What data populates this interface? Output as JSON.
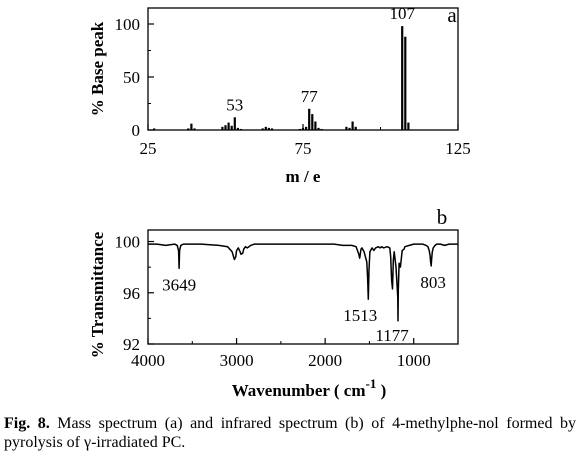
{
  "chart_data": [
    {
      "type": "bar",
      "panel_label": "a",
      "xlabel": "m / e",
      "ylabel": "% Base peak",
      "xlim": [
        25,
        125
      ],
      "ylim": [
        0,
        100
      ],
      "xticks": [
        "25",
        "75",
        "125"
      ],
      "yticks": [
        "0",
        "50",
        "100"
      ],
      "x": [
        27,
        38,
        39,
        40,
        49,
        50,
        51,
        52,
        53,
        54,
        55,
        62,
        63,
        64,
        65,
        74,
        75,
        76,
        77,
        78,
        79,
        80,
        81,
        89,
        90,
        91,
        92,
        106,
        107,
        108,
        109
      ],
      "values": [
        1.5,
        1.5,
        6,
        1.5,
        3,
        4.5,
        7,
        4,
        12,
        2,
        1,
        1.5,
        3,
        2,
        1.5,
        1,
        2,
        3,
        20,
        15,
        8,
        2,
        1,
        3,
        2,
        8,
        3,
        0.5,
        98,
        88,
        7
      ],
      "annotations": [
        {
          "x": 53,
          "text": "53"
        },
        {
          "x": 77,
          "text": "77"
        },
        {
          "x": 107,
          "text": "107"
        }
      ]
    },
    {
      "type": "line",
      "panel_label": "b",
      "xlabel_main": "Wavenumber ( cm",
      "xlabel_sup": "-1",
      "xlabel_end": " )",
      "ylabel": "% Transmittance",
      "xlim": [
        4000,
        500
      ],
      "ylim": [
        92,
        100.9
      ],
      "xticks": [
        "4000",
        "3000",
        "2000",
        "1000"
      ],
      "yticks": [
        "92",
        "96",
        "100"
      ],
      "x": [
        4000,
        3900,
        3800,
        3700,
        3670,
        3655,
        3649,
        3643,
        3630,
        3600,
        3400,
        3200,
        3100,
        3050,
        3025,
        3010,
        3000,
        2980,
        2960,
        2950,
        2930,
        2920,
        2900,
        2880,
        2860,
        2840,
        2800,
        2700,
        2600,
        2400,
        2200,
        2000,
        1900,
        1800,
        1700,
        1650,
        1620,
        1610,
        1600,
        1595,
        1585,
        1560,
        1530,
        1520,
        1513,
        1505,
        1495,
        1470,
        1450,
        1430,
        1400,
        1380,
        1360,
        1340,
        1300,
        1270,
        1260,
        1250,
        1240,
        1230,
        1220,
        1210,
        1200,
        1190,
        1180,
        1177,
        1174,
        1165,
        1150,
        1130,
        1110,
        1100,
        1050,
        1000,
        950,
        900,
        860,
        840,
        825,
        815,
        810,
        803,
        798,
        790,
        780,
        760,
        740,
        700,
        650,
        600,
        550,
        500
      ],
      "y": [
        99.8,
        99.8,
        99.7,
        99.8,
        99.7,
        99.3,
        97.9,
        99.3,
        99.7,
        99.8,
        99.8,
        99.7,
        99.6,
        99.2,
        98.6,
        98.8,
        99.3,
        99.5,
        99.2,
        99.0,
        99.1,
        99.4,
        99.6,
        99.5,
        99.6,
        99.7,
        99.8,
        99.8,
        99.8,
        99.8,
        99.8,
        99.8,
        99.8,
        99.7,
        99.7,
        99.6,
        99.0,
        98.7,
        99.2,
        99.4,
        99.5,
        99.2,
        98.4,
        97.0,
        95.5,
        97.8,
        99.2,
        99.5,
        99.3,
        99.5,
        99.6,
        99.5,
        99.6,
        99.5,
        99.6,
        99.5,
        98.8,
        97.0,
        96.3,
        98.5,
        99.2,
        98.6,
        98.0,
        96.8,
        95.6,
        93.8,
        96.2,
        98.3,
        98.0,
        99.3,
        99.4,
        99.6,
        99.7,
        99.8,
        99.8,
        99.8,
        99.7,
        99.6,
        99.3,
        98.9,
        98.5,
        98.1,
        98.6,
        99.2,
        99.5,
        99.7,
        99.8,
        99.8,
        99.7,
        99.8,
        99.8,
        99.8
      ],
      "annotations": [
        {
          "x": 3649,
          "text": "3649"
        },
        {
          "x": 1513,
          "text": "1513"
        },
        {
          "x": 1177,
          "text": "1177"
        },
        {
          "x": 803,
          "text": "803"
        }
      ]
    }
  ],
  "caption": {
    "fig_ref": "Fig. 8.",
    "text": " Mass spectrum (a) and infrared spectrum (b) of 4-methylphe-nol formed by pyrolysis of γ-irradiated PC."
  }
}
